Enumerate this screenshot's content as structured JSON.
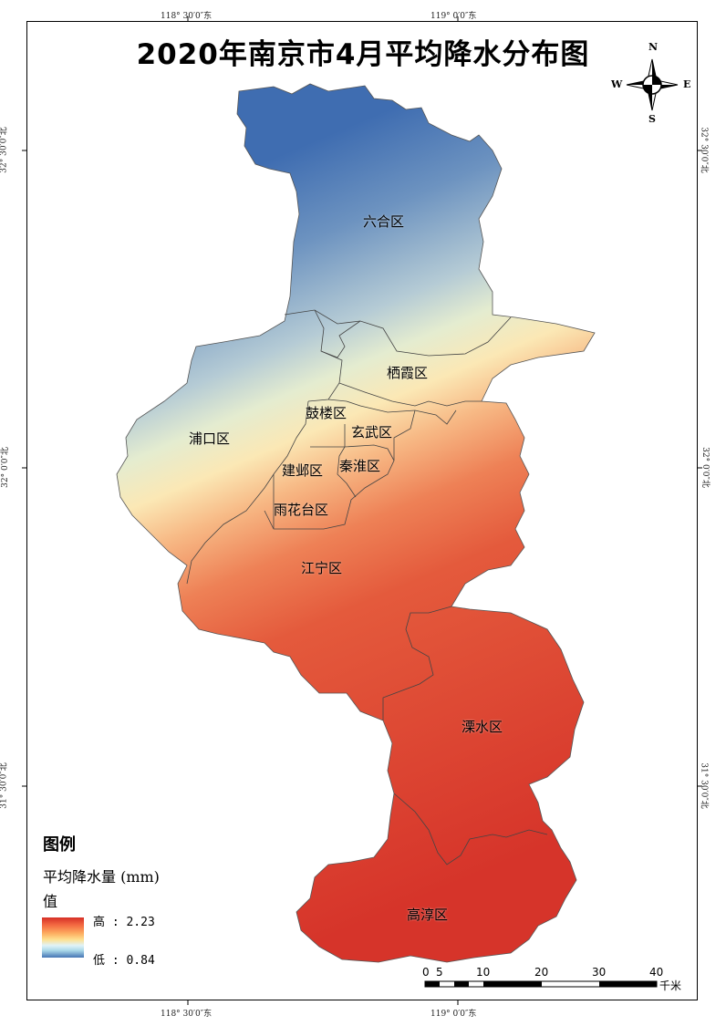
{
  "title": "2020年南京市4月平均降水分布图",
  "coords": {
    "top_left": "118° 30′0″东",
    "top_right": "119° 0′0″东",
    "bottom_left": "118° 30′0″东",
    "bottom_right": "119° 0′0″东",
    "left_top": "32° 30′0″北",
    "left_mid": "32° 0′0″北",
    "left_bottom": "31° 30′0″北",
    "right_top": "32° 30′0″北",
    "right_mid": "32° 0′0″北",
    "right_bottom": "31° 30′0″北"
  },
  "compass": {
    "n": "N",
    "s": "S",
    "e": "E",
    "w": "W"
  },
  "districts": {
    "liuhe": "六合区",
    "qixia": "栖霞区",
    "gulou": "鼓楼区",
    "xuanwu": "玄武区",
    "pukou": "浦口区",
    "jianye": "建邺区",
    "qinhuai": "秦淮区",
    "yuhuatai": "雨花台区",
    "jiangning": "江宁区",
    "lishui": "溧水区",
    "gaochun": "高淳区"
  },
  "legend": {
    "title": "图例",
    "variable": "平均降水量 (mm)",
    "field": "值",
    "high_label": "高 : 2.23",
    "low_label": "低 : 0.84",
    "high_value": 2.23,
    "low_value": 0.84
  },
  "scale_bar": {
    "ticks": [
      "0",
      "5",
      "10",
      "20",
      "30",
      "40"
    ],
    "unit": "千米"
  },
  "colors": {
    "high": "#d73027",
    "mid": "#fee090",
    "low": "#4575b4"
  }
}
